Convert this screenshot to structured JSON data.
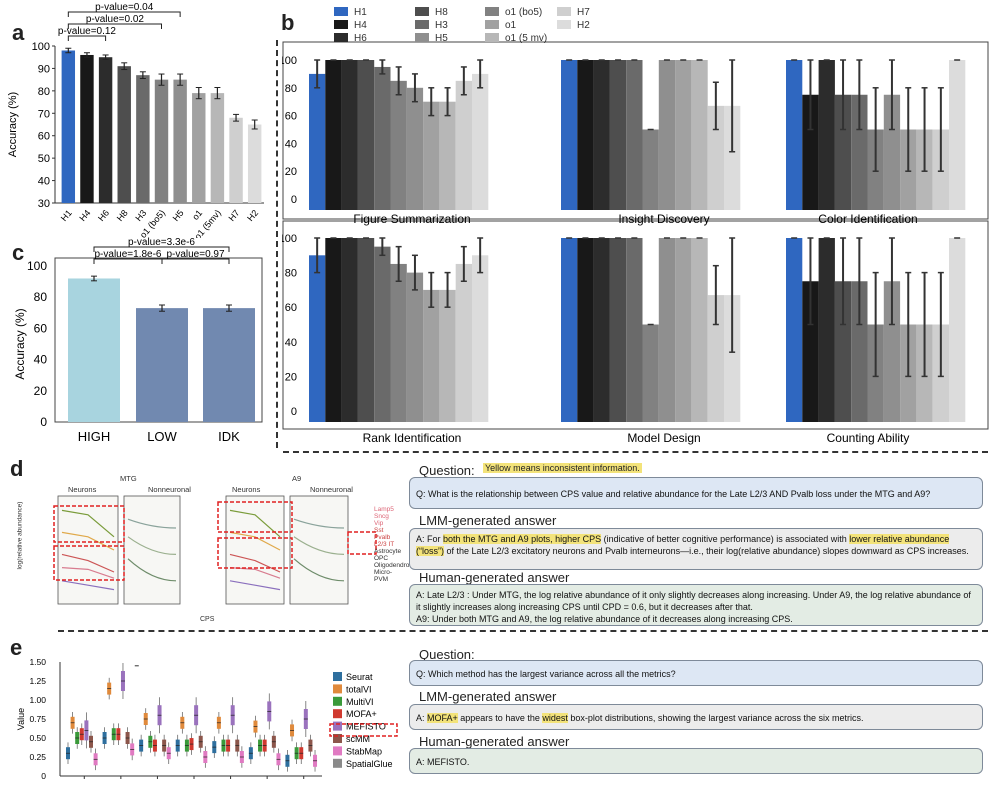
{
  "panels": {
    "a": "a",
    "b": "b",
    "c": "c",
    "d": "d",
    "e": "e"
  },
  "colors": {
    "H1": "#2f67c0",
    "H4": "#181818",
    "H6": "#2c2c2c",
    "H8": "#4e4e4e",
    "H3": "#6a6a6a",
    "o1_bo5": "#818181",
    "H5": "#8f8f8f",
    "o1": "#a1a1a1",
    "o1_5mv": "#b7b7b7",
    "H7": "#cfcfcf",
    "H2": "#dcdcdc",
    "high": "#a8d4df",
    "low": "#7189b0",
    "idk": "#7189b0"
  },
  "chart_data": [
    {
      "id": "a",
      "type": "bar",
      "categories": [
        "H1",
        "H4",
        "H6",
        "H8",
        "H3",
        "o1 (bo5)",
        "H5",
        "o1",
        "o1 (5mv)",
        "H7",
        "H2"
      ],
      "values": [
        98,
        96,
        95,
        91,
        87,
        85,
        85,
        79,
        79,
        68,
        65
      ],
      "errors": [
        1,
        1,
        1,
        1.5,
        1.5,
        2.5,
        2.5,
        2.5,
        2.5,
        1.5,
        2
      ],
      "ylabel": "Accuracy (%)",
      "ylim": [
        30,
        100
      ],
      "yticks": [
        "30",
        "40",
        "50",
        "60",
        "70",
        "80",
        "90",
        "100"
      ],
      "brackets": [
        {
          "label": "p-value=0.04",
          "from": 0,
          "to": 6
        },
        {
          "label": "p-value=0.02",
          "from": 0,
          "to": 5
        },
        {
          "label": "p-value=0.12",
          "from": 0,
          "to": 2
        }
      ]
    },
    {
      "id": "b",
      "type": "bar",
      "legend": [
        {
          "name": "H1",
          "color": "#2f67c0"
        },
        {
          "name": "H4",
          "color": "#181818"
        },
        {
          "name": "H6",
          "color": "#2c2c2c"
        },
        {
          "name": "H8",
          "color": "#4e4e4e"
        },
        {
          "name": "H3",
          "color": "#6a6a6a"
        },
        {
          "name": "H5",
          "color": "#8f8f8f"
        },
        {
          "name": "o1 (bo5)",
          "color": "#818181"
        },
        {
          "name": "o1",
          "color": "#a1a1a1"
        },
        {
          "name": "o1 (5 mv)",
          "color": "#b7b7b7"
        },
        {
          "name": "H7",
          "color": "#cfcfcf"
        },
        {
          "name": "H2",
          "color": "#dcdcdc"
        }
      ],
      "ylim": [
        0,
        100
      ],
      "yticks": [
        "0",
        "20",
        "40",
        "60",
        "80",
        "100"
      ],
      "subplots": [
        {
          "title": "Figure Summarization",
          "values": [
            90,
            100,
            100,
            100,
            95,
            85,
            80,
            70,
            70,
            85,
            90
          ],
          "errors": [
            10,
            0,
            0,
            0,
            5,
            10,
            10,
            10,
            10,
            10,
            10
          ]
        },
        {
          "title": "Insight Discovery",
          "values": [
            100,
            100,
            100,
            100,
            100,
            50,
            100,
            100,
            100,
            67,
            67
          ],
          "errors": [
            0,
            0,
            0,
            0,
            0,
            0,
            0,
            0,
            0,
            17,
            33
          ]
        },
        {
          "title": "Color Identification",
          "values": [
            100,
            75,
            100,
            75,
            75,
            50,
            75,
            50,
            50,
            50,
            100
          ],
          "errors": [
            0,
            25,
            0,
            25,
            25,
            30,
            25,
            30,
            30,
            30,
            0
          ]
        },
        {
          "title": "Rank Identification",
          "values": [
            90,
            100,
            100,
            100,
            95,
            85,
            80,
            70,
            70,
            85,
            90
          ],
          "errors": [
            10,
            0,
            0,
            0,
            5,
            10,
            10,
            10,
            10,
            10,
            10
          ]
        },
        {
          "title": "Model Design",
          "values": [
            100,
            100,
            100,
            100,
            100,
            50,
            100,
            100,
            100,
            67,
            67
          ],
          "errors": [
            0,
            0,
            0,
            0,
            0,
            0,
            0,
            0,
            0,
            17,
            33
          ]
        },
        {
          "title": "Counting Ability",
          "values": [
            100,
            75,
            100,
            75,
            75,
            50,
            75,
            50,
            50,
            50,
            100
          ],
          "errors": [
            0,
            25,
            0,
            25,
            25,
            30,
            25,
            30,
            30,
            30,
            0
          ]
        }
      ]
    },
    {
      "id": "c",
      "type": "bar",
      "categories": [
        "HIGH",
        "LOW",
        "IDK"
      ],
      "values": [
        92,
        73,
        73
      ],
      "errors": [
        1.5,
        2,
        2
      ],
      "ylabel": "Accuracy (%)",
      "ylim": [
        0,
        100
      ],
      "yticks": [
        "0",
        "20",
        "40",
        "60",
        "80",
        "100"
      ],
      "brackets": [
        {
          "label": "p-value=3.3e-6",
          "from": 0,
          "to": 2
        },
        {
          "label": "p-value=1.8e-6",
          "from": 0,
          "to": 1
        },
        {
          "label": "p-value=0.97",
          "from": 1,
          "to": 2
        }
      ]
    },
    {
      "id": "e",
      "type": "box",
      "ylabel": "Value",
      "ylim": [
        0,
        1.5
      ],
      "yticks": [
        "0",
        "0.25",
        "0.50",
        "0.75",
        "1.00",
        "1.25",
        "1.50"
      ],
      "series": [
        {
          "name": "Seurat",
          "color": "#2e6f9e"
        },
        {
          "name": "totalVI",
          "color": "#e08a3c"
        },
        {
          "name": "MultiVI",
          "color": "#3a9a3a"
        },
        {
          "name": "MOFA+",
          "color": "#d0392f"
        },
        {
          "name": "MEFISTO",
          "color": "#9a72bd"
        },
        {
          "name": "scMM",
          "color": "#8c564b"
        },
        {
          "name": "StabMap",
          "color": "#e07ac2"
        },
        {
          "name": "SpatialGlue",
          "color": "#8a8a8a"
        }
      ],
      "groups": [
        {
          "medians": [
            0.3,
            0.7,
            0.5,
            0.55,
            0.6,
            0.45,
            0.22,
            null
          ]
        },
        {
          "medians": [
            0.5,
            1.15,
            0.55,
            0.55,
            1.25,
            0.5,
            0.35,
            1.45
          ]
        },
        {
          "medians": [
            0.4,
            0.75,
            0.45,
            0.4,
            0.8,
            0.4,
            0.3,
            null
          ]
        },
        {
          "medians": [
            0.4,
            0.7,
            0.4,
            0.42,
            0.8,
            0.45,
            0.25,
            null
          ]
        },
        {
          "medians": [
            0.38,
            0.7,
            0.4,
            0.4,
            0.8,
            0.4,
            0.25,
            null
          ]
        },
        {
          "medians": [
            0.3,
            0.65,
            0.4,
            0.4,
            0.85,
            0.45,
            0.22,
            null
          ]
        },
        {
          "medians": [
            0.2,
            0.6,
            0.3,
            0.3,
            0.75,
            0.4,
            0.2,
            null
          ]
        }
      ]
    }
  ],
  "panel_d": {
    "titles": {
      "mtg": "MTG",
      "a9": "A9",
      "neurons1": "Neurons",
      "nonneuronal1": "Nonneuronal",
      "neurons2": "Neurons",
      "nonneuronal2": "Nonneuronal"
    },
    "ylabel": "log(relative abundance)",
    "xlabel": "CPS",
    "legend": [
      "Lamp5",
      "Sncg",
      "Vip",
      "Sst",
      "Pvalb",
      "L2/3 IT",
      "Astrocyte",
      "OPC",
      "Oligodendrocyte",
      "Micro-PVM"
    ]
  },
  "qa_d": {
    "question_label": "Question:",
    "note": "Yellow means inconsistent information.",
    "question": "Q: What is the relationship between CPS value and relative abundance for the Late L2/3 AND Pvalb loss under the MTG and A9?",
    "lmm_label": "LMM-generated answer",
    "lmm_a1": "A: For ",
    "lmm_h1": "both the MTG and A9 plots, higher CPS",
    "lmm_a2": " (indicative of better cognitive performance) is associated with ",
    "lmm_h2": "lower relative abundance (“loss”)",
    "lmm_a3": " of the Late L2/3 excitatory neurons and Pvalb interneurons—i.e., their log(relative abundance) slopes downward as CPS increases.",
    "human_label": "Human-generated answer",
    "human_1": "A: Late L2/3 : Under MTG, the log relative abundance of it only slightly decreases along increasing. Under A9, the log relative abundance of it slightly increases along increasing CPS until CPD = 0.6, but it decreases after that.",
    "human_2": "A9: Under both MTG and A9, the log relative abundance of it decreases along increasing CPS."
  },
  "qa_e": {
    "question_label": "Question:",
    "question": "Q: Which method has the largest variance across all the metrics?",
    "lmm_label": "LMM-generated answer",
    "lmm_a1": "A: ",
    "lmm_h1": "MOFA+",
    "lmm_a2": " appears to have the ",
    "lmm_h2": "widest",
    "lmm_a3": " box-plot distributions, showing the largest variance across the six metrics.",
    "human_label": "Human-generated answer",
    "human": "A: MEFISTO."
  }
}
